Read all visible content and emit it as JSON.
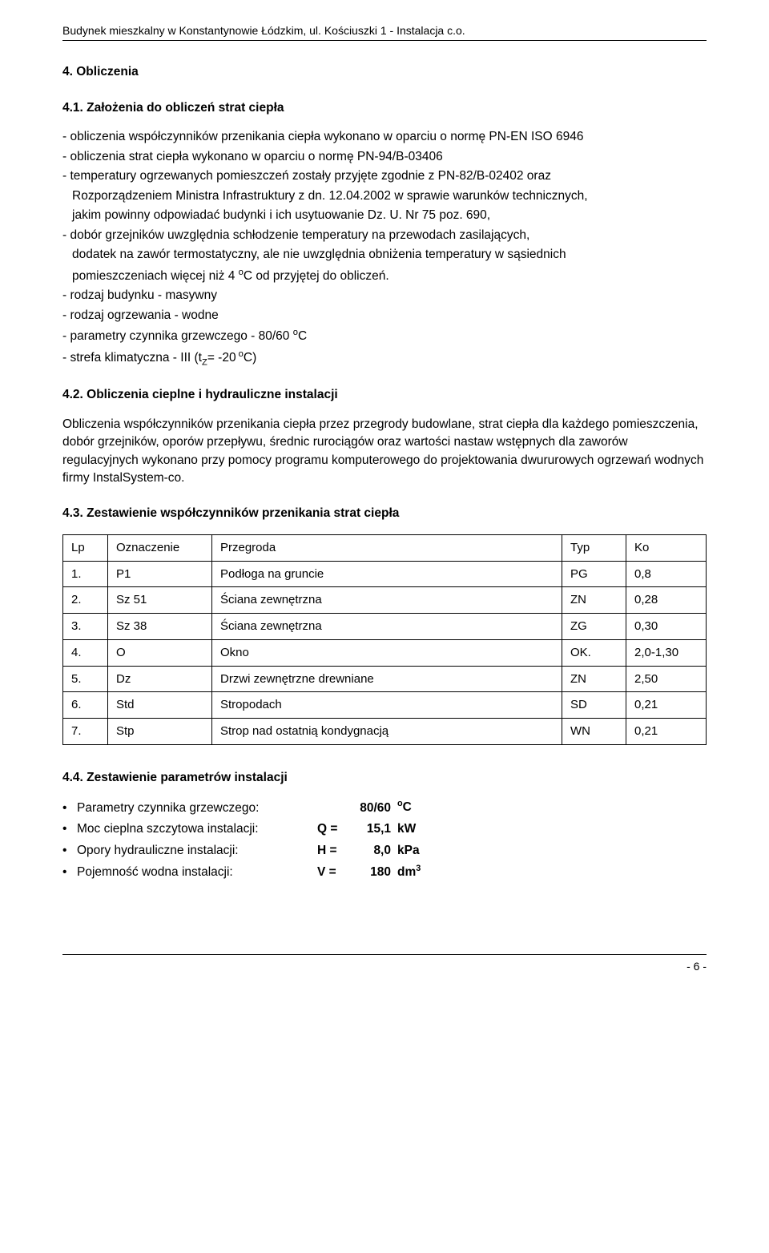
{
  "header": "Budynek mieszkalny w Konstantynowie Łódzkim, ul. Kościuszki 1 - Instalacja c.o.",
  "s4": {
    "title": "4. Obliczenia",
    "s41_title": "4.1. Założenia do obliczeń strat ciepła",
    "b1_l1": "- obliczenia współczynników przenikania ciepła  wykonano w oparciu o normę PN-EN ISO 6946",
    "b1_l2": "- obliczenia strat ciepła  wykonano w oparciu o normę PN-94/B-03406",
    "b1_l3": "- temperatury ogrzewanych pomieszczeń zostały przyjęte zgodnie z PN-82/B-02402 oraz",
    "b1_l4": "Rozporządzeniem  Ministra Infrastruktury z dn. 12.04.2002 w sprawie warunków technicznych,",
    "b1_l5": "jakim powinny odpowiadać budynki i ich usytuowanie Dz. U. Nr 75 poz. 690,",
    "b1_l6": "- dobór grzejników uwzględnia schłodzenie temperatury na przewodach zasilających,",
    "b1_l7": "dodatek na zawór termostatyczny, ale nie uwzględnia obniżenia temperatury w sąsiednich",
    "b1_l8_pre": "pomieszczeniach więcej niż 4 ",
    "b1_l8_unit": "o",
    "b1_l8_post": "C od przyjętej do obliczeń.",
    "b1_l9": "- rodzaj budynku - masywny",
    "b1_l10": "- rodzaj ogrzewania - wodne",
    "b1_l11_pre": "- parametry czynnika grzewczego - 80/60 ",
    "b1_l11_unit": "o",
    "b1_l11_post": "C",
    "b1_l12_pre": "- strefa klimatyczna - III (t",
    "b1_l12_sub": "Z",
    "b1_l12_mid": "= -20",
    "b1_l12_sup": " o",
    "b1_l12_post": "C)",
    "s42_title": "4.2. Obliczenia cieplne i hydrauliczne instalacji",
    "s42_p": "Obliczenia współczynników przenikania ciepła przez przegrody budowlane, strat ciepła dla każdego pomieszczenia, dobór grzejników, oporów przepływu, średnic rurociągów oraz wartości nastaw wstępnych dla zaworów regulacyjnych wykonano przy pomocy programu komputerowego do projektowania dwururowych ogrzewań wodnych firmy  InstalSystem-co.",
    "s43_title": "4.3. Zestawienie współczynników przenikania strat ciepła",
    "table": {
      "columns": [
        "Lp",
        "Oznaczenie",
        "Przegroda",
        "Typ",
        "Ko"
      ],
      "rows": [
        [
          "1.",
          "P1",
          "Podłoga na gruncie",
          "PG",
          "0,8"
        ],
        [
          "2.",
          "Sz 51",
          "Ściana zewnętrzna",
          "ZN",
          "0,28"
        ],
        [
          "3.",
          "Sz 38",
          "Ściana zewnętrzna",
          "ZG",
          "0,30"
        ],
        [
          "4.",
          "O",
          "Okno",
          "OK.",
          "2,0-1,30"
        ],
        [
          "5.",
          "Dz",
          "Drzwi zewnętrzne drewniane",
          "ZN",
          "2,50"
        ],
        [
          "6.",
          "Std",
          "Stropodach",
          "SD",
          "0,21"
        ],
        [
          "7.",
          "Stp",
          "Strop nad ostatnią kondygnacją",
          "WN",
          "0,21"
        ]
      ]
    },
    "s44_title": "4.4. Zestawienie parametrów instalacji",
    "params": [
      {
        "label": "Parametry czynnika grzewczego:",
        "eq": "",
        "val": "80/60",
        "unit_pre": "",
        "unit_sup": "o",
        "unit_post": "C"
      },
      {
        "label": "Moc cieplna szczytowa instalacji:",
        "eq": "Q =",
        "val": "15,1",
        "unit_pre": "kW",
        "unit_sup": "",
        "unit_post": ""
      },
      {
        "label": "Opory hydrauliczne instalacji:",
        "eq": "H =",
        "val": "8,0",
        "unit_pre": "kPa",
        "unit_sup": "",
        "unit_post": ""
      },
      {
        "label": "Pojemność wodna instalacji:",
        "eq": "V =",
        "val": "180",
        "unit_pre": "dm",
        "unit_sup": "3",
        "unit_post": ""
      }
    ]
  },
  "footer": "-  6  -"
}
